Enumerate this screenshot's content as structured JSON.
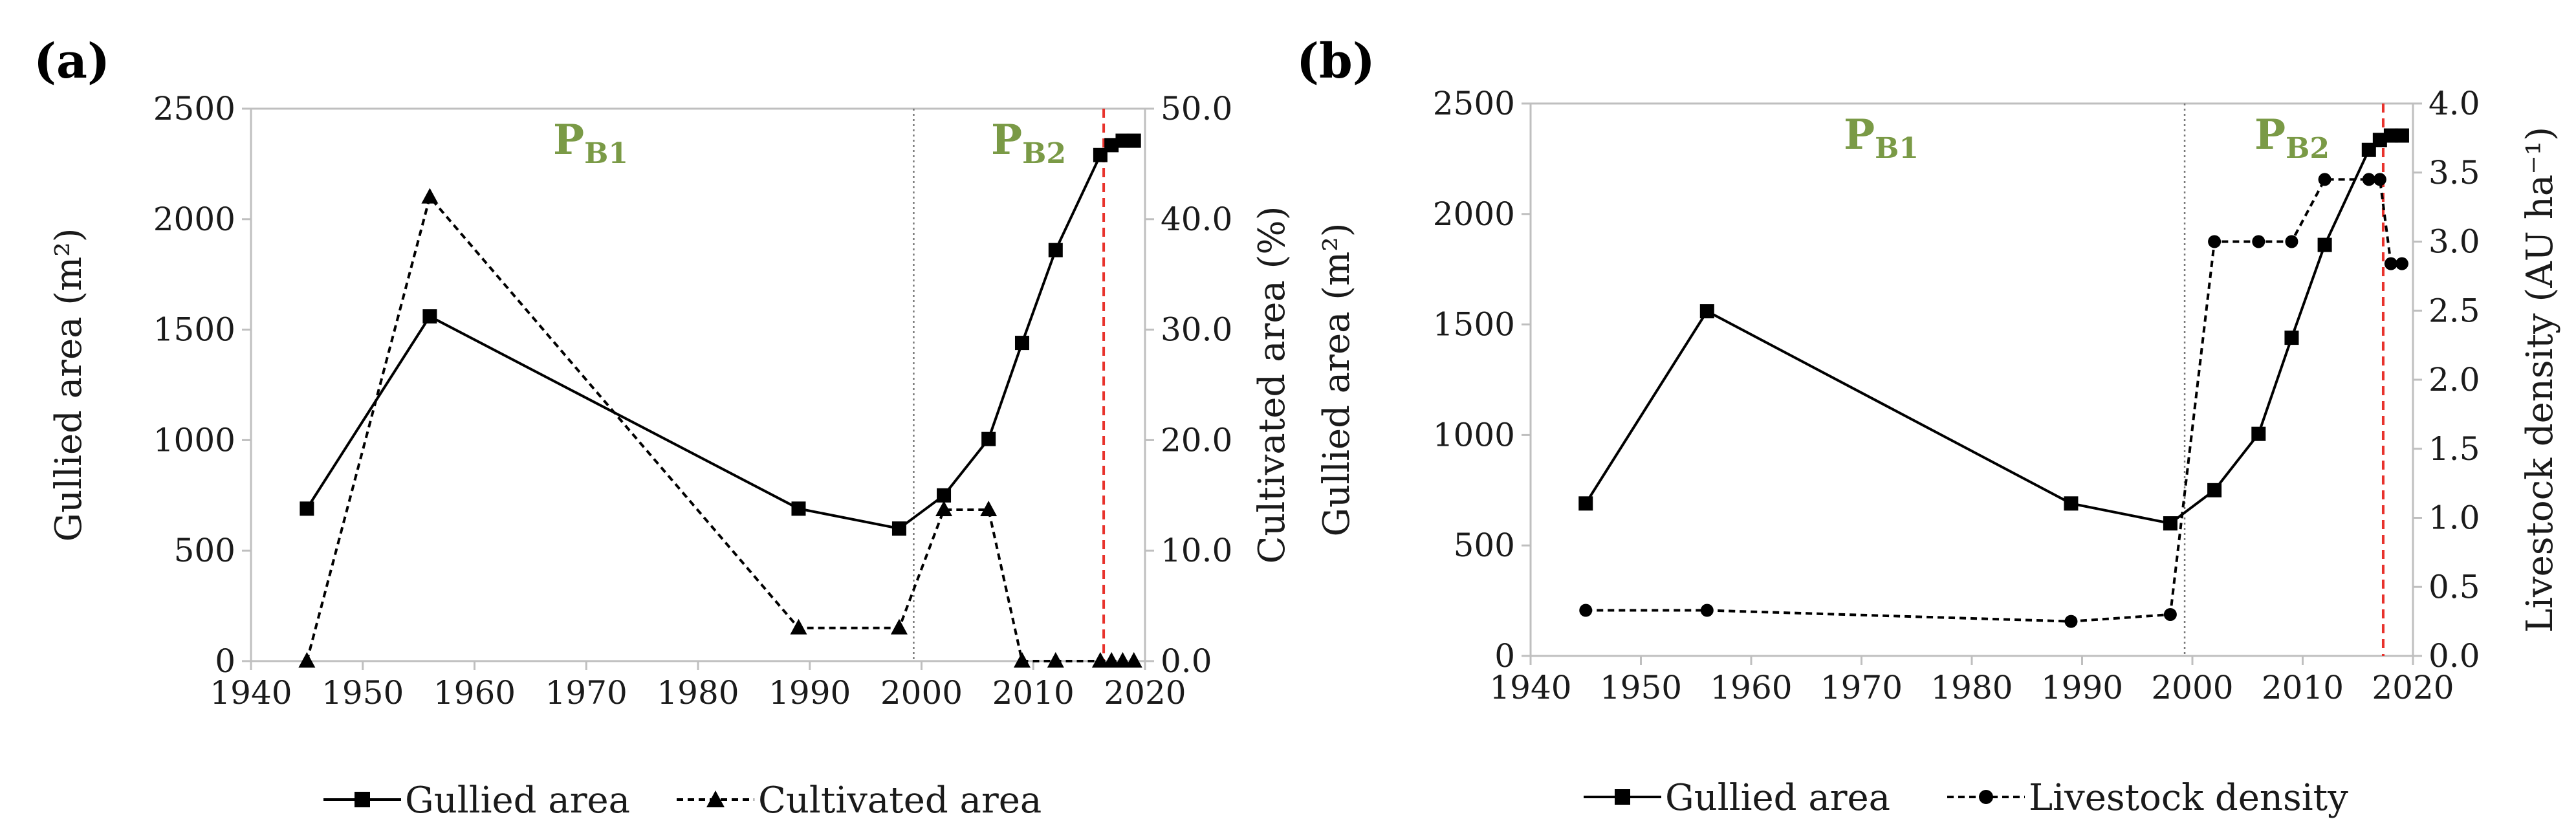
{
  "chart_data": [
    {
      "panel_label": "(a)",
      "type": "line",
      "x": [
        1945,
        1956,
        1989,
        1998,
        2002,
        2006,
        2009,
        2012,
        2016,
        2017,
        2018,
        2019
      ],
      "xlim": [
        1940,
        2020
      ],
      "xticks": [
        "1940",
        "1950",
        "1960",
        "1970",
        "1980",
        "1990",
        "2000",
        "2010",
        "2020"
      ],
      "ylabel": "Gullied area (m²)",
      "ylim": [
        0,
        2500
      ],
      "yticks": [
        "0",
        "500",
        "1000",
        "1500",
        "2000",
        "2500"
      ],
      "ylabel_right": "Cultivated area (%)",
      "ylim_right": [
        0,
        50
      ],
      "yticks_right": [
        "0.0",
        "10.0",
        "20.0",
        "30.0",
        "40.0",
        "50.0"
      ],
      "series": [
        {
          "name": "Gullied area",
          "axis": "left",
          "style": "solid",
          "marker": "square",
          "values": [
            690,
            1560,
            690,
            600,
            750,
            1005,
            1440,
            1860,
            2290,
            2335,
            2355,
            2355
          ]
        },
        {
          "name": "Cultivated area",
          "axis": "right",
          "style": "dashed",
          "marker": "triangle",
          "values": [
            0,
            42,
            3,
            3,
            13.7,
            13.7,
            0,
            0,
            0,
            0,
            0,
            0
          ]
        }
      ],
      "period_labels": [
        {
          "main": "P",
          "sub": "B1"
        },
        {
          "main": "P",
          "sub": "B2"
        }
      ],
      "period_boundary_year": 1999.3,
      "marker_year": 2016.3,
      "legend": [
        "Gullied area",
        "Cultivated area"
      ]
    },
    {
      "panel_label": "(b)",
      "type": "line",
      "x": [
        1945,
        1956,
        1989,
        1998,
        2002,
        2006,
        2009,
        2012,
        2016,
        2017,
        2018,
        2019
      ],
      "xlim": [
        1940,
        2020
      ],
      "xticks": [
        "1940",
        "1950",
        "1960",
        "1970",
        "1980",
        "1990",
        "2000",
        "2010",
        "2020"
      ],
      "ylabel": "Gullied area (m²)",
      "ylim": [
        0,
        2500
      ],
      "yticks": [
        "0",
        "500",
        "1000",
        "1500",
        "2000",
        "2500"
      ],
      "ylabel_right": "Livestock density (AU ha⁻¹)",
      "ylim_right": [
        0,
        4
      ],
      "yticks_right": [
        "0.0",
        "0.5",
        "1.0",
        "1.5",
        "2.0",
        "2.5",
        "3.0",
        "3.5",
        "4.0"
      ],
      "series": [
        {
          "name": "Gullied area",
          "axis": "left",
          "style": "solid",
          "marker": "square",
          "values": [
            690,
            1560,
            690,
            600,
            750,
            1005,
            1440,
            1860,
            2290,
            2335,
            2355,
            2355
          ]
        },
        {
          "name": "Livestock density",
          "axis": "right",
          "style": "dashed",
          "marker": "circle",
          "x": [
            1945,
            1956,
            1989,
            1998,
            2002,
            2006,
            2009,
            2012,
            2016,
            2017,
            2018,
            2019
          ],
          "values": [
            0.33,
            0.33,
            0.25,
            0.3,
            3.0,
            3.0,
            3.0,
            3.45,
            3.45,
            3.45,
            2.84,
            2.84
          ]
        }
      ],
      "period_labels": [
        {
          "main": "P",
          "sub": "B1"
        },
        {
          "main": "P",
          "sub": "B2"
        }
      ],
      "period_boundary_year": 1999.3,
      "marker_year": 2017.3,
      "legend": [
        "Gullied area",
        "Livestock density"
      ]
    }
  ],
  "colors": {
    "axis": "#bfbfbf",
    "line": "#000000",
    "period_label": "#7a9a46",
    "red_marker": "#e8322c",
    "boundary": "#777777"
  }
}
